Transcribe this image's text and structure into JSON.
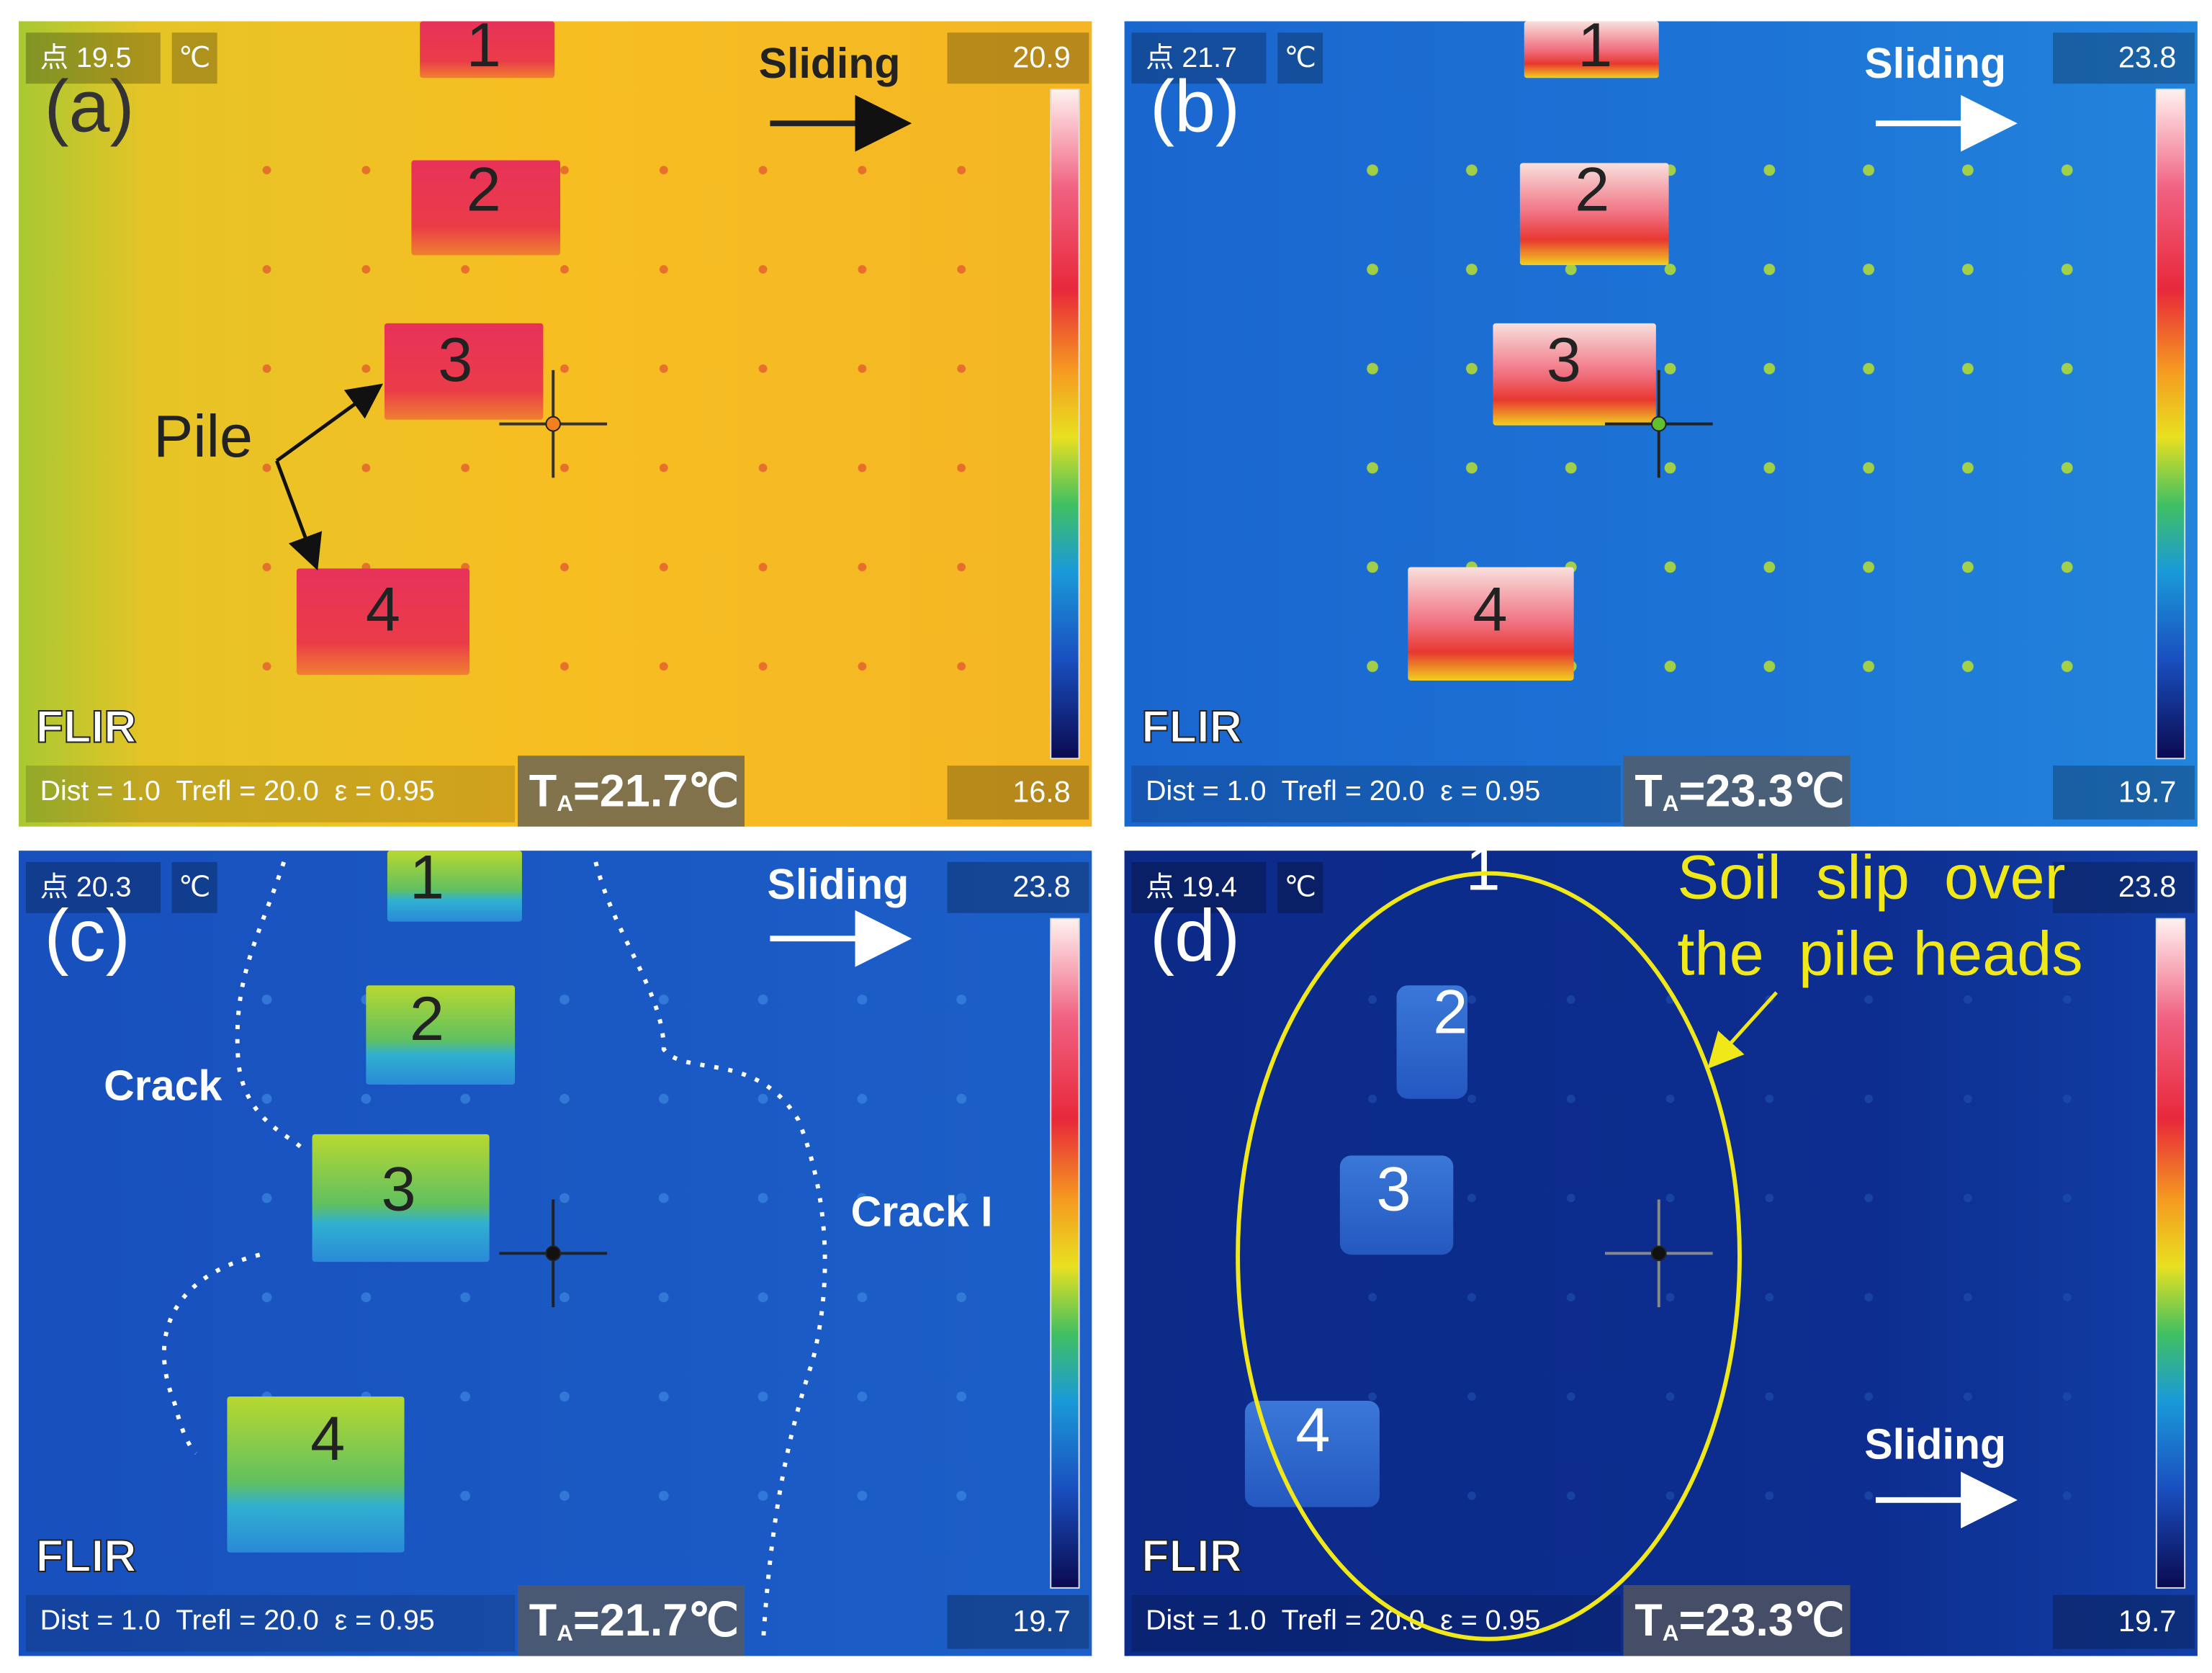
{
  "panels": [
    {
      "label": "(a)",
      "point": "点 19.5",
      "unit": "℃",
      "max": "20.9",
      "min": "16.8",
      "direction": "Sliding",
      "piles": [
        "1",
        "2",
        "3",
        "4"
      ],
      "brand": "FLIR",
      "params": "Dist = 1.0  Trefl = 20.0  ε = 0.95",
      "ta": {
        "symbol": "T",
        "sub": "A",
        "value": "=21.7℃"
      },
      "notes": [
        "Pile"
      ]
    },
    {
      "label": "(b)",
      "point": "点 21.7",
      "unit": "℃",
      "max": "23.8",
      "min": "19.7",
      "direction": "Sliding",
      "piles": [
        "1",
        "2",
        "3",
        "4"
      ],
      "brand": "FLIR",
      "params": "Dist = 1.0  Trefl = 20.0  ε = 0.95",
      "ta": {
        "symbol": "T",
        "sub": "A",
        "value": "=23.3℃"
      },
      "notes": []
    },
    {
      "label": "(c)",
      "point": "点 20.3",
      "unit": "℃",
      "max": "23.8",
      "min": "19.7",
      "direction": "Sliding",
      "piles": [
        "1",
        "2",
        "3",
        "4"
      ],
      "brand": "FLIR",
      "params": "Dist = 1.0  Trefl = 20.0  ε = 0.95",
      "ta": {
        "symbol": "T",
        "sub": "A",
        "value": "=21.7℃"
      },
      "notes": [
        "Crack",
        "Crack I"
      ]
    },
    {
      "label": "(d)",
      "point": "点 19.4",
      "unit": "℃",
      "max": "23.8",
      "min": "19.7",
      "direction": "Sliding",
      "piles": [
        "1",
        "2",
        "3",
        "4"
      ],
      "brand": "FLIR",
      "params": "Dist = 1.0  Trefl = 20.0  ε = 0.95",
      "ta": {
        "symbol": "T",
        "sub": "A",
        "value": "=23.3℃"
      },
      "notes": [
        "Soil  slip  over",
        "the  pile heads"
      ]
    }
  ]
}
